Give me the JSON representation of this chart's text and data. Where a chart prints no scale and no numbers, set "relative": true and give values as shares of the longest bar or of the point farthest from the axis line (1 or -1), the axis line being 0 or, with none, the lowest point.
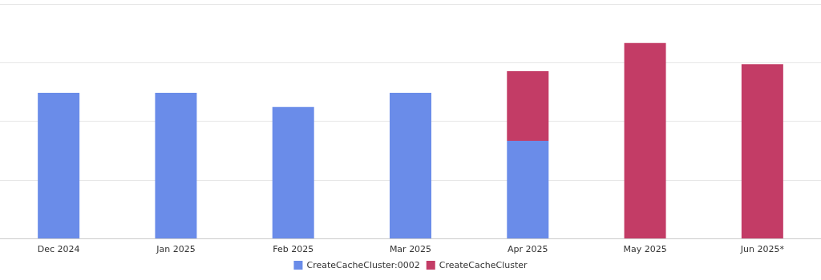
{
  "chart_data": {
    "type": "bar",
    "relative": true,
    "stacked": true,
    "grid": "y",
    "legend": "bottom",
    "categories": [
      "Dec 2024",
      "Jan 2025",
      "Feb 2025",
      "Mar 2025",
      "Apr 2025",
      "May 2025",
      "Jun 2025*"
    ],
    "series": [
      {
        "name": "CreateCacheCluster:0002",
        "color": "#6a8ce9",
        "values": [
          0.745,
          0.745,
          0.673,
          0.745,
          0.5,
          null,
          null
        ]
      },
      {
        "name": "CreateCacheCluster",
        "color": "#c33c66",
        "values": [
          null,
          null,
          null,
          null,
          0.356,
          1,
          0.892
        ]
      }
    ]
  }
}
